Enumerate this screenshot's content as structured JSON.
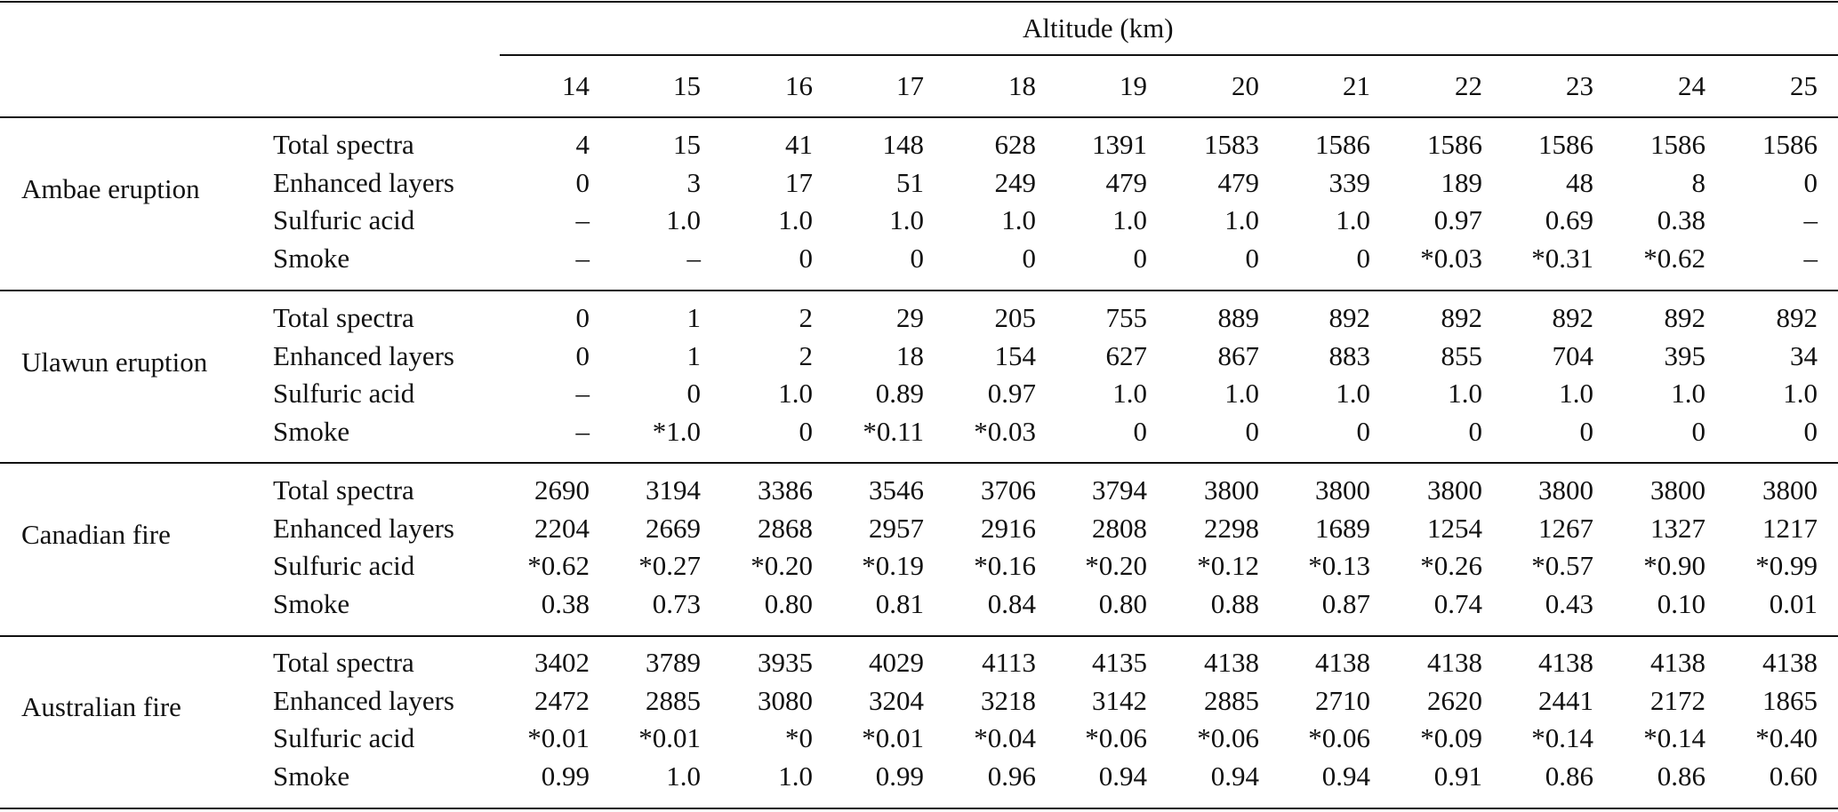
{
  "header": {
    "altitude_label": "Altitude (km)",
    "altitudes": [
      "14",
      "15",
      "16",
      "17",
      "18",
      "19",
      "20",
      "21",
      "22",
      "23",
      "24",
      "25"
    ]
  },
  "groups": [
    {
      "name": "Ambae eruption",
      "rows": [
        {
          "label": "Total spectra",
          "values": [
            "4",
            "15",
            "41",
            "148",
            "628",
            "1391",
            "1583",
            "1586",
            "1586",
            "1586",
            "1586",
            "1586"
          ]
        },
        {
          "label": "Enhanced layers",
          "values": [
            "0",
            "3",
            "17",
            "51",
            "249",
            "479",
            "479",
            "339",
            "189",
            "48",
            "8",
            "0"
          ]
        },
        {
          "label": "Sulfuric acid",
          "values": [
            "–",
            "1.0",
            "1.0",
            "1.0",
            "1.0",
            "1.0",
            "1.0",
            "1.0",
            "0.97",
            "0.69",
            "0.38",
            "–"
          ]
        },
        {
          "label": "Smoke",
          "values": [
            "–",
            "–",
            "0",
            "0",
            "0",
            "0",
            "0",
            "0",
            "*0.03",
            "*0.31",
            "*0.62",
            "–"
          ]
        }
      ]
    },
    {
      "name": "Ulawun eruption",
      "rows": [
        {
          "label": "Total spectra",
          "values": [
            "0",
            "1",
            "2",
            "29",
            "205",
            "755",
            "889",
            "892",
            "892",
            "892",
            "892",
            "892"
          ]
        },
        {
          "label": "Enhanced layers",
          "values": [
            "0",
            "1",
            "2",
            "18",
            "154",
            "627",
            "867",
            "883",
            "855",
            "704",
            "395",
            "34"
          ]
        },
        {
          "label": "Sulfuric acid",
          "values": [
            "–",
            "0",
            "1.0",
            "0.89",
            "0.97",
            "1.0",
            "1.0",
            "1.0",
            "1.0",
            "1.0",
            "1.0",
            "1.0"
          ]
        },
        {
          "label": "Smoke",
          "values": [
            "–",
            "*1.0",
            "0",
            "*0.11",
            "*0.03",
            "0",
            "0",
            "0",
            "0",
            "0",
            "0",
            "0"
          ]
        }
      ]
    },
    {
      "name": "Canadian fire",
      "rows": [
        {
          "label": "Total spectra",
          "values": [
            "2690",
            "3194",
            "3386",
            "3546",
            "3706",
            "3794",
            "3800",
            "3800",
            "3800",
            "3800",
            "3800",
            "3800"
          ]
        },
        {
          "label": "Enhanced layers",
          "values": [
            "2204",
            "2669",
            "2868",
            "2957",
            "2916",
            "2808",
            "2298",
            "1689",
            "1254",
            "1267",
            "1327",
            "1217"
          ]
        },
        {
          "label": "Sulfuric acid",
          "values": [
            "*0.62",
            "*0.27",
            "*0.20",
            "*0.19",
            "*0.16",
            "*0.20",
            "*0.12",
            "*0.13",
            "*0.26",
            "*0.57",
            "*0.90",
            "*0.99"
          ]
        },
        {
          "label": "Smoke",
          "values": [
            "0.38",
            "0.73",
            "0.80",
            "0.81",
            "0.84",
            "0.80",
            "0.88",
            "0.87",
            "0.74",
            "0.43",
            "0.10",
            "0.01"
          ]
        }
      ]
    },
    {
      "name": "Australian fire",
      "rows": [
        {
          "label": "Total spectra",
          "values": [
            "3402",
            "3789",
            "3935",
            "4029",
            "4113",
            "4135",
            "4138",
            "4138",
            "4138",
            "4138",
            "4138",
            "4138"
          ]
        },
        {
          "label": "Enhanced layers",
          "values": [
            "2472",
            "2885",
            "3080",
            "3204",
            "3218",
            "3142",
            "2885",
            "2710",
            "2620",
            "2441",
            "2172",
            "1865"
          ]
        },
        {
          "label": "Sulfuric acid",
          "values": [
            "*0.01",
            "*0.01",
            "*0",
            "*0.01",
            "*0.04",
            "*0.06",
            "*0.06",
            "*0.06",
            "*0.09",
            "*0.14",
            "*0.14",
            "*0.40"
          ]
        },
        {
          "label": "Smoke",
          "values": [
            "0.99",
            "1.0",
            "1.0",
            "0.99",
            "0.96",
            "0.94",
            "0.94",
            "0.94",
            "0.91",
            "0.86",
            "0.86",
            "0.60"
          ]
        }
      ]
    }
  ]
}
